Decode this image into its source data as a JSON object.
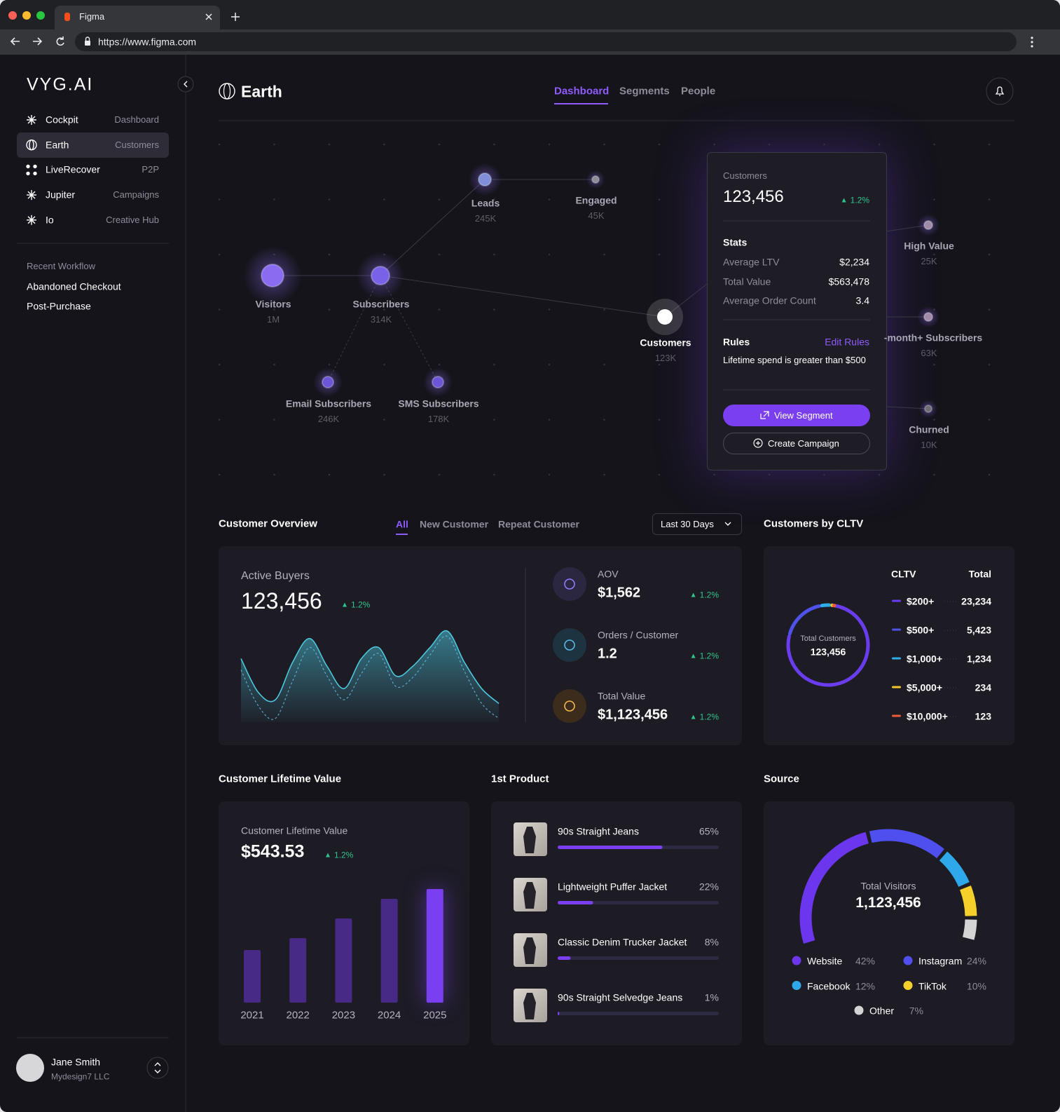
{
  "browser": {
    "tab_title": "Figma",
    "url": "https://www.figma.com"
  },
  "sidebar": {
    "logo": "VYG.AI",
    "nav": [
      {
        "label": "Cockpit",
        "sub": "Dashboard"
      },
      {
        "label": "Earth",
        "sub": "Customers"
      },
      {
        "label": "LiveRecover",
        "sub": "P2P"
      },
      {
        "label": "Jupiter",
        "sub": "Campaigns"
      },
      {
        "label": "Io",
        "sub": "Creative Hub"
      }
    ],
    "recent_title": "Recent Workflow",
    "recent": [
      "Abandoned Checkout",
      "Post-Purchase"
    ],
    "user": {
      "name": "Jane Smith",
      "company": "Mydesign7 LLC"
    }
  },
  "header": {
    "title": "Earth",
    "tabs": [
      "Dashboard",
      "Segments",
      "People"
    ]
  },
  "flow": {
    "nodes": [
      {
        "label": "Visitors",
        "value": "1M"
      },
      {
        "label": "Subscribers",
        "value": "314K"
      },
      {
        "label": "Leads",
        "value": "245K"
      },
      {
        "label": "Engaged",
        "value": "45K"
      },
      {
        "label": "Email Subscribers",
        "value": "246K"
      },
      {
        "label": "SMS Subscribers",
        "value": "178K"
      },
      {
        "label": "Customers",
        "value": "123K"
      },
      {
        "label": "High Value",
        "value": "25K"
      },
      {
        "label": "-month+ Subscribers",
        "value": "63K"
      },
      {
        "label": "Churned",
        "value": "10K"
      }
    ]
  },
  "segment_card": {
    "title": "Customers",
    "value": "123,456",
    "change": "1.2%",
    "stats_title": "Stats",
    "stats": [
      {
        "label": "Average LTV",
        "value": "$2,234"
      },
      {
        "label": "Total Value",
        "value": "$563,478"
      },
      {
        "label": "Average Order Count",
        "value": "3.4"
      }
    ],
    "rules_title": "Rules",
    "edit": "Edit Rules",
    "rule": "Lifetime spend is greater than $500",
    "primary": "View Segment",
    "secondary": "Create Campaign"
  },
  "overview": {
    "title": "Customer Overview",
    "filters": [
      "All",
      "New Customer",
      "Repeat Customer"
    ],
    "range": "Last 30 Days",
    "label": "Active Buyers",
    "value": "123,456",
    "change": "1.2%",
    "metrics": [
      {
        "label": "AOV",
        "value": "$1,562",
        "change": "1.2%"
      },
      {
        "label": "Orders / Customer",
        "value": "1.2",
        "change": "1.2%"
      },
      {
        "label": "Total Value",
        "value": "$1,123,456",
        "change": "1.2%"
      }
    ]
  },
  "chart_data": [
    {
      "type": "area",
      "series": [
        {
          "color": "#4cc6dc",
          "values": [
            85,
            40,
            30,
            80,
            112,
            75,
            45,
            85,
            100,
            62,
            75,
            100,
            122,
            80,
            45,
            25
          ]
        },
        {
          "color": "#5a9fc9",
          "values": [
            70,
            22,
            5,
            55,
            100,
            62,
            30,
            65,
            92,
            48,
            60,
            90,
            115,
            68,
            25,
            5
          ]
        }
      ]
    },
    {
      "type": "donut",
      "title": "Customers by CLTV",
      "column_labels": [
        "CLTV",
        "Total"
      ],
      "center_label": "Total Customers",
      "center_value": "123,456",
      "categories": [
        "$200+",
        "$500+",
        "$1,000+",
        "$5,000+",
        "$10,000+"
      ],
      "values": [
        23234,
        5423,
        1234,
        234,
        123
      ],
      "value_labels": [
        "23,234",
        "5,423",
        "1,234",
        "234",
        "123"
      ],
      "colors": [
        "#6a3cf0",
        "#4f52ea",
        "#2eaee8",
        "#f5c52a",
        "#ef5a3c"
      ]
    },
    {
      "type": "bar",
      "title": "Customer Lifetime Value",
      "subtitle": "Customer Lifetime Value",
      "value": "$543.53",
      "change": "1.2%",
      "categories": [
        "2021",
        "2022",
        "2023",
        "2024",
        "2025"
      ],
      "values": [
        75,
        92,
        120,
        148,
        162
      ],
      "colors": [
        "#472a85",
        "#472a85",
        "#472a85",
        "#472a85",
        "#7b3ff2"
      ]
    },
    {
      "type": "progress",
      "title": "1st Product",
      "categories": [
        "90s Straight Jeans",
        "Lightweight Puffer Jacket",
        "Classic Denim Trucker Jacket",
        "90s Straight Selvedge Jeans"
      ],
      "values": [
        65,
        22,
        8,
        1
      ],
      "value_labels": [
        "65%",
        "22%",
        "8%",
        "1%"
      ],
      "xlim": [
        0,
        100
      ],
      "color": "#7b3ff2"
    },
    {
      "type": "gauge",
      "title": "Source",
      "center_label": "Total Visitors",
      "center_value": "1,123,456",
      "categories": [
        "Website",
        "Instagram",
        "Facebook",
        "TikTok",
        "Other"
      ],
      "values": [
        42,
        24,
        12,
        10,
        7
      ],
      "value_labels": [
        "42%",
        "24%",
        "12%",
        "10%",
        "7%"
      ],
      "colors": [
        "#6c36ef",
        "#4f4ff0",
        "#2ea8ea",
        "#f5d02a",
        "#d4d4d4"
      ]
    }
  ]
}
